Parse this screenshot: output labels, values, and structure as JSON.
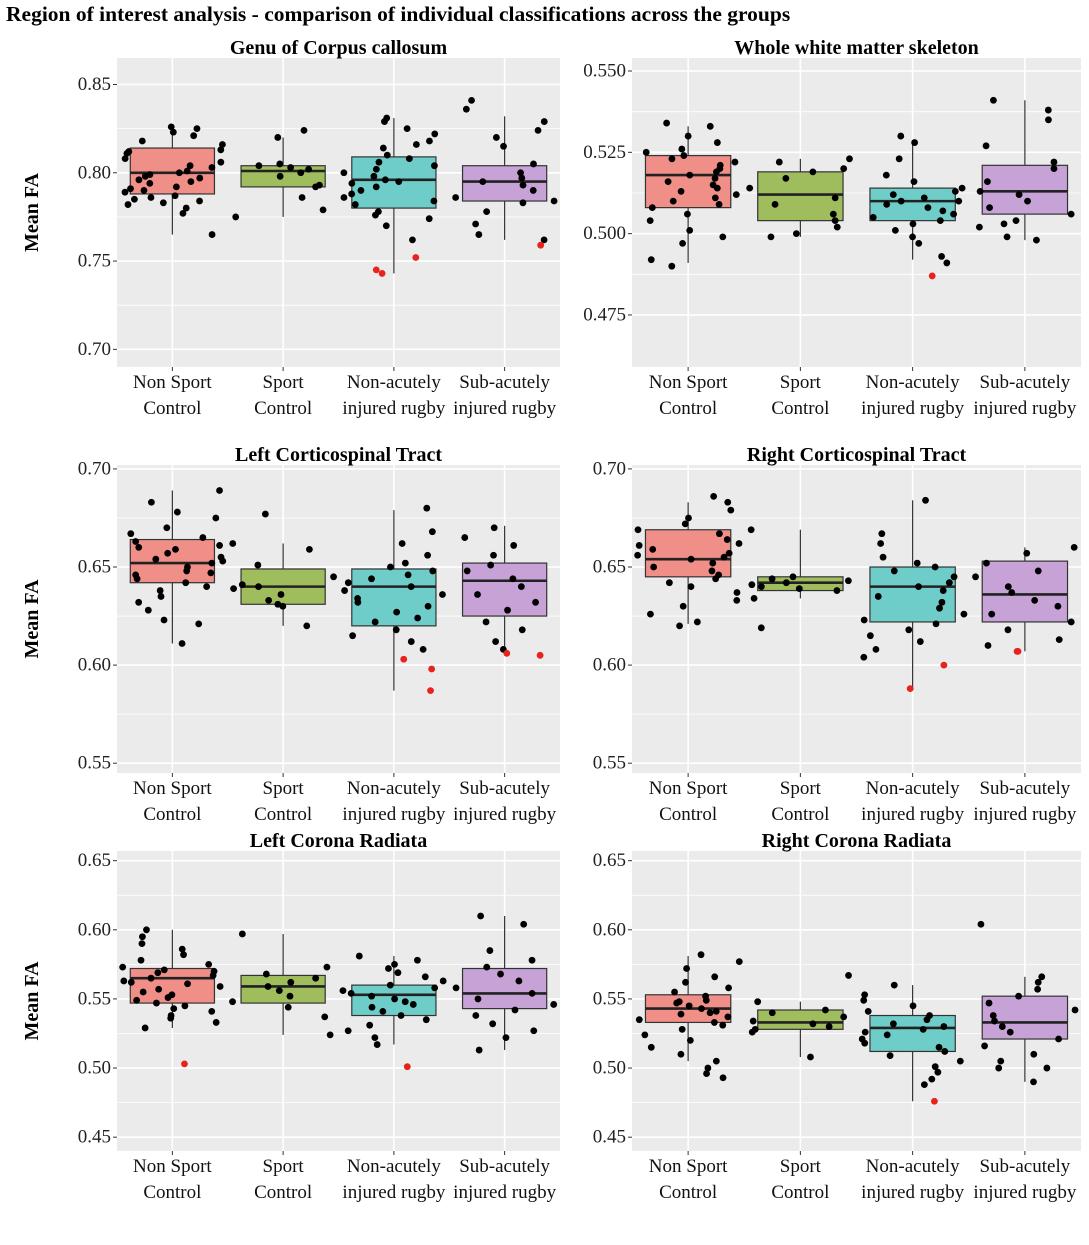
{
  "figure_title": "Region of interest analysis - comparison of individual classifications across the groups",
  "colors": {
    "panel_bg": "#ebebeb",
    "grid": "#ffffff",
    "Non Sport Control": "#f08f88",
    "Sport Control": "#9fbd5c",
    "Non-acutely injured rugby": "#6fcdc9",
    "Sub-acutely injured rugby": "#c7a2d7",
    "points": "#000000",
    "outliers": "#e8221c"
  },
  "chart_data": [
    {
      "type": "box",
      "title": "Genu of Corpus callosum",
      "ylabel": "Mean FA",
      "ylim": [
        0.69,
        0.865
      ],
      "yticks": [
        "0.70",
        "0.75",
        "0.80",
        "0.85"
      ],
      "grid": true,
      "categories": [
        [
          "Non Sport",
          "Control"
        ],
        [
          "Sport",
          "Control"
        ],
        [
          "Non-acutely",
          "injured rugby"
        ],
        [
          "Sub-acutely",
          "injured rugby"
        ]
      ],
      "boxes": [
        {
          "group": "Non Sport Control",
          "whisker_low": 0.765,
          "q1": 0.788,
          "median": 0.8,
          "q3": 0.814,
          "whisker_high": 0.827,
          "points": [
            0.823,
            0.821,
            0.825,
            0.818,
            0.816,
            0.813,
            0.811,
            0.808,
            0.806,
            0.804,
            0.803,
            0.801,
            0.8,
            0.799,
            0.798,
            0.797,
            0.795,
            0.794,
            0.792,
            0.791,
            0.79,
            0.789,
            0.787,
            0.786,
            0.785,
            0.784,
            0.783,
            0.782,
            0.78,
            0.777,
            0.765,
            0.812,
            0.796,
            0.826
          ],
          "outliers": []
        },
        {
          "group": "Sport Control",
          "whisker_low": 0.775,
          "q1": 0.792,
          "median": 0.801,
          "q3": 0.804,
          "whisker_high": 0.82,
          "points": [
            0.82,
            0.824,
            0.805,
            0.804,
            0.803,
            0.802,
            0.8,
            0.798,
            0.793,
            0.792,
            0.786,
            0.779,
            0.775
          ],
          "outliers": []
        },
        {
          "group": "Non-acutely injured rugby",
          "whisker_low": 0.743,
          "q1": 0.78,
          "median": 0.796,
          "q3": 0.809,
          "whisker_high": 0.831,
          "points": [
            0.831,
            0.829,
            0.825,
            0.822,
            0.818,
            0.814,
            0.81,
            0.806,
            0.804,
            0.802,
            0.8,
            0.798,
            0.796,
            0.795,
            0.794,
            0.792,
            0.79,
            0.788,
            0.786,
            0.784,
            0.782,
            0.778,
            0.776,
            0.774,
            0.77,
            0.762,
            0.816,
            0.808
          ],
          "outliers": [
            0.752,
            0.745,
            0.743
          ]
        },
        {
          "group": "Sub-acutely injured rugby",
          "whisker_low": 0.762,
          "q1": 0.784,
          "median": 0.795,
          "q3": 0.804,
          "whisker_high": 0.832,
          "points": [
            0.841,
            0.836,
            0.829,
            0.824,
            0.82,
            0.815,
            0.805,
            0.8,
            0.797,
            0.795,
            0.793,
            0.79,
            0.786,
            0.784,
            0.783,
            0.778,
            0.771,
            0.765,
            0.762
          ],
          "outliers": [
            0.759
          ]
        }
      ]
    },
    {
      "type": "box",
      "title": "Whole white matter skeleton",
      "ylabel": "",
      "ylim": [
        0.459,
        0.554
      ],
      "yticks": [
        "0.475",
        "0.500",
        "0.525",
        "0.550"
      ],
      "grid": true,
      "categories": [
        [
          "Non Sport",
          "Control"
        ],
        [
          "Sport",
          "Control"
        ],
        [
          "Non-acutely",
          "injured rugby"
        ],
        [
          "Sub-acutely",
          "injured rugby"
        ]
      ],
      "boxes": [
        {
          "group": "Non Sport Control",
          "whisker_low": 0.491,
          "q1": 0.508,
          "median": 0.518,
          "q3": 0.524,
          "whisker_high": 0.533,
          "points": [
            0.534,
            0.533,
            0.53,
            0.528,
            0.526,
            0.525,
            0.524,
            0.523,
            0.522,
            0.521,
            0.52,
            0.519,
            0.518,
            0.517,
            0.516,
            0.515,
            0.514,
            0.513,
            0.512,
            0.511,
            0.51,
            0.509,
            0.508,
            0.506,
            0.504,
            0.501,
            0.499,
            0.497,
            0.492,
            0.49
          ],
          "outliers": []
        },
        {
          "group": "Sport Control",
          "whisker_low": 0.499,
          "q1": 0.504,
          "median": 0.512,
          "q3": 0.519,
          "whisker_high": 0.523,
          "points": [
            0.523,
            0.522,
            0.52,
            0.519,
            0.517,
            0.514,
            0.511,
            0.509,
            0.506,
            0.504,
            0.502,
            0.5,
            0.499
          ],
          "outliers": []
        },
        {
          "group": "Non-acutely injured rugby",
          "whisker_low": 0.492,
          "q1": 0.504,
          "median": 0.51,
          "q3": 0.514,
          "whisker_high": 0.528,
          "points": [
            0.53,
            0.528,
            0.523,
            0.518,
            0.516,
            0.514,
            0.513,
            0.512,
            0.511,
            0.51,
            0.51,
            0.509,
            0.508,
            0.507,
            0.506,
            0.505,
            0.504,
            0.503,
            0.501,
            0.499,
            0.497,
            0.493,
            0.491
          ],
          "outliers": [
            0.487
          ]
        },
        {
          "group": "Sub-acutely injured rugby",
          "whisker_low": 0.498,
          "q1": 0.506,
          "median": 0.513,
          "q3": 0.521,
          "whisker_high": 0.541,
          "points": [
            0.538,
            0.541,
            0.535,
            0.527,
            0.522,
            0.52,
            0.516,
            0.513,
            0.512,
            0.51,
            0.508,
            0.506,
            0.504,
            0.503,
            0.502,
            0.499,
            0.498
          ],
          "outliers": []
        }
      ]
    },
    {
      "type": "box",
      "title": "Left Corticospinal Tract",
      "ylabel": "Mean FA",
      "ylim": [
        0.545,
        0.702
      ],
      "yticks": [
        "0.55",
        "0.60",
        "0.65",
        "0.70"
      ],
      "grid": true,
      "categories": [
        [
          "Non Sport",
          "Control"
        ],
        [
          "Sport",
          "Control"
        ],
        [
          "Non-acutely",
          "injured rugby"
        ],
        [
          "Sub-acutely",
          "injured rugby"
        ]
      ],
      "boxes": [
        {
          "group": "Non Sport Control",
          "whisker_low": 0.611,
          "q1": 0.642,
          "median": 0.652,
          "q3": 0.664,
          "whisker_high": 0.689,
          "points": [
            0.689,
            0.683,
            0.678,
            0.675,
            0.67,
            0.667,
            0.665,
            0.663,
            0.661,
            0.659,
            0.657,
            0.655,
            0.653,
            0.652,
            0.65,
            0.648,
            0.646,
            0.644,
            0.642,
            0.64,
            0.638,
            0.635,
            0.632,
            0.628,
            0.623,
            0.621,
            0.611,
            0.66,
            0.654,
            0.647
          ],
          "outliers": []
        },
        {
          "group": "Sport Control",
          "whisker_low": 0.62,
          "q1": 0.631,
          "median": 0.64,
          "q3": 0.649,
          "whisker_high": 0.662,
          "points": [
            0.677,
            0.662,
            0.659,
            0.651,
            0.645,
            0.641,
            0.64,
            0.639,
            0.636,
            0.633,
            0.631,
            0.63,
            0.62
          ],
          "outliers": []
        },
        {
          "group": "Non-acutely injured rugby",
          "whisker_low": 0.587,
          "q1": 0.62,
          "median": 0.64,
          "q3": 0.649,
          "whisker_high": 0.679,
          "points": [
            0.68,
            0.668,
            0.662,
            0.656,
            0.652,
            0.65,
            0.648,
            0.646,
            0.644,
            0.642,
            0.64,
            0.638,
            0.636,
            0.634,
            0.632,
            0.63,
            0.627,
            0.624,
            0.622,
            0.618,
            0.615,
            0.612,
            0.608
          ],
          "outliers": [
            0.603,
            0.598,
            0.587
          ]
        },
        {
          "group": "Sub-acutely injured rugby",
          "whisker_low": 0.605,
          "q1": 0.625,
          "median": 0.643,
          "q3": 0.652,
          "whisker_high": 0.671,
          "points": [
            0.67,
            0.665,
            0.661,
            0.656,
            0.651,
            0.648,
            0.644,
            0.64,
            0.636,
            0.632,
            0.628,
            0.622,
            0.618,
            0.612,
            0.608
          ],
          "outliers": [
            0.605,
            0.606
          ]
        }
      ]
    },
    {
      "type": "box",
      "title": "Right Corticospinal Tract",
      "ylabel": "",
      "ylim": [
        0.545,
        0.702
      ],
      "yticks": [
        "0.55",
        "0.60",
        "0.65",
        "0.70"
      ],
      "grid": true,
      "categories": [
        [
          "Non Sport",
          "Control"
        ],
        [
          "Sport",
          "Control"
        ],
        [
          "Non-acutely",
          "injured rugby"
        ],
        [
          "Sub-acutely",
          "injured rugby"
        ]
      ],
      "boxes": [
        {
          "group": "Non Sport Control",
          "whisker_low": 0.621,
          "q1": 0.645,
          "median": 0.654,
          "q3": 0.669,
          "whisker_high": 0.683,
          "points": [
            0.686,
            0.683,
            0.679,
            0.675,
            0.672,
            0.669,
            0.667,
            0.664,
            0.661,
            0.659,
            0.657,
            0.655,
            0.654,
            0.652,
            0.65,
            0.648,
            0.646,
            0.644,
            0.642,
            0.64,
            0.637,
            0.633,
            0.63,
            0.626,
            0.622,
            0.62,
            0.662,
            0.656
          ],
          "outliers": []
        },
        {
          "group": "Sport Control",
          "whisker_low": 0.634,
          "q1": 0.638,
          "median": 0.642,
          "q3": 0.645,
          "whisker_high": 0.669,
          "points": [
            0.669,
            0.645,
            0.644,
            0.643,
            0.642,
            0.641,
            0.64,
            0.639,
            0.638,
            0.634,
            0.619
          ],
          "outliers": []
        },
        {
          "group": "Non-acutely injured rugby",
          "whisker_low": 0.588,
          "q1": 0.622,
          "median": 0.64,
          "q3": 0.65,
          "whisker_high": 0.684,
          "points": [
            0.684,
            0.667,
            0.662,
            0.655,
            0.652,
            0.65,
            0.648,
            0.645,
            0.642,
            0.64,
            0.638,
            0.635,
            0.632,
            0.629,
            0.626,
            0.623,
            0.621,
            0.618,
            0.615,
            0.612,
            0.608,
            0.604
          ],
          "outliers": [
            0.6,
            0.588
          ]
        },
        {
          "group": "Sub-acutely injured rugby",
          "whisker_low": 0.607,
          "q1": 0.622,
          "median": 0.636,
          "q3": 0.653,
          "whisker_high": 0.66,
          "points": [
            0.66,
            0.657,
            0.652,
            0.648,
            0.645,
            0.64,
            0.637,
            0.633,
            0.63,
            0.626,
            0.622,
            0.618,
            0.613,
            0.61
          ],
          "outliers": [
            0.607,
            0.607
          ]
        }
      ]
    },
    {
      "type": "box",
      "title": "Left Corona Radiata",
      "ylabel": "Mean FA",
      "ylim": [
        0.44,
        0.657
      ],
      "yticks": [
        "0.45",
        "0.50",
        "0.55",
        "0.60",
        "0.65"
      ],
      "grid": true,
      "categories": [
        [
          "Non Sport",
          "Control"
        ],
        [
          "Sport",
          "Control"
        ],
        [
          "Non-acutely",
          "injured rugby"
        ],
        [
          "Sub-acutely",
          "injured rugby"
        ]
      ],
      "boxes": [
        {
          "group": "Non Sport Control",
          "whisker_low": 0.529,
          "q1": 0.547,
          "median": 0.565,
          "q3": 0.572,
          "whisker_high": 0.6,
          "points": [
            0.6,
            0.595,
            0.59,
            0.586,
            0.582,
            0.578,
            0.575,
            0.573,
            0.571,
            0.569,
            0.567,
            0.565,
            0.563,
            0.561,
            0.559,
            0.557,
            0.555,
            0.553,
            0.551,
            0.549,
            0.547,
            0.545,
            0.543,
            0.541,
            0.538,
            0.536,
            0.533,
            0.529,
            0.57,
            0.562
          ],
          "outliers": [
            0.503
          ]
        },
        {
          "group": "Sport Control",
          "whisker_low": 0.524,
          "q1": 0.547,
          "median": 0.559,
          "q3": 0.567,
          "whisker_high": 0.597,
          "points": [
            0.597,
            0.573,
            0.568,
            0.565,
            0.562,
            0.559,
            0.556,
            0.552,
            0.548,
            0.544,
            0.537,
            0.524
          ],
          "outliers": []
        },
        {
          "group": "Non-acutely injured rugby",
          "whisker_low": 0.517,
          "q1": 0.538,
          "median": 0.553,
          "q3": 0.56,
          "whisker_high": 0.581,
          "points": [
            0.581,
            0.578,
            0.575,
            0.572,
            0.569,
            0.566,
            0.563,
            0.56,
            0.558,
            0.556,
            0.554,
            0.552,
            0.55,
            0.548,
            0.546,
            0.544,
            0.541,
            0.538,
            0.535,
            0.531,
            0.527,
            0.522,
            0.517
          ],
          "outliers": [
            0.501
          ]
        },
        {
          "group": "Sub-acutely injured rugby",
          "whisker_low": 0.513,
          "q1": 0.543,
          "median": 0.554,
          "q3": 0.572,
          "whisker_high": 0.61,
          "points": [
            0.61,
            0.604,
            0.585,
            0.578,
            0.573,
            0.568,
            0.563,
            0.558,
            0.554,
            0.55,
            0.546,
            0.542,
            0.538,
            0.532,
            0.527,
            0.522,
            0.513
          ],
          "outliers": []
        }
      ]
    },
    {
      "type": "box",
      "title": "Right Corona Radiata",
      "ylabel": "",
      "ylim": [
        0.44,
        0.657
      ],
      "yticks": [
        "0.45",
        "0.50",
        "0.55",
        "0.60",
        "0.65"
      ],
      "grid": true,
      "categories": [
        [
          "Non Sport",
          "Control"
        ],
        [
          "Sport",
          "Control"
        ],
        [
          "Non-acutely",
          "injured rugby"
        ],
        [
          "Sub-acutely",
          "injured rugby"
        ]
      ],
      "boxes": [
        {
          "group": "Non Sport Control",
          "whisker_low": 0.505,
          "q1": 0.533,
          "median": 0.543,
          "q3": 0.553,
          "whisker_high": 0.581,
          "points": [
            0.582,
            0.577,
            0.572,
            0.566,
            0.562,
            0.558,
            0.555,
            0.552,
            0.549,
            0.547,
            0.545,
            0.543,
            0.541,
            0.539,
            0.537,
            0.535,
            0.533,
            0.531,
            0.528,
            0.524,
            0.52,
            0.515,
            0.51,
            0.505,
            0.5,
            0.496,
            0.493,
            0.548,
            0.54
          ],
          "outliers": []
        },
        {
          "group": "Sport Control",
          "whisker_low": 0.508,
          "q1": 0.528,
          "median": 0.533,
          "q3": 0.542,
          "whisker_high": 0.548,
          "points": [
            0.567,
            0.548,
            0.542,
            0.54,
            0.537,
            0.534,
            0.532,
            0.53,
            0.528,
            0.526,
            0.508
          ],
          "outliers": []
        },
        {
          "group": "Non-acutely injured rugby",
          "whisker_low": 0.476,
          "q1": 0.512,
          "median": 0.529,
          "q3": 0.538,
          "whisker_high": 0.56,
          "points": [
            0.56,
            0.553,
            0.549,
            0.545,
            0.541,
            0.538,
            0.535,
            0.532,
            0.53,
            0.528,
            0.526,
            0.524,
            0.521,
            0.518,
            0.515,
            0.512,
            0.509,
            0.505,
            0.501,
            0.497,
            0.492,
            0.488
          ],
          "outliers": [
            0.476
          ]
        },
        {
          "group": "Sub-acutely injured rugby",
          "whisker_low": 0.49,
          "q1": 0.521,
          "median": 0.533,
          "q3": 0.552,
          "whisker_high": 0.566,
          "points": [
            0.604,
            0.566,
            0.562,
            0.557,
            0.552,
            0.547,
            0.542,
            0.538,
            0.534,
            0.53,
            0.526,
            0.521,
            0.516,
            0.51,
            0.505,
            0.5,
            0.5,
            0.49
          ],
          "outliers": []
        }
      ]
    }
  ]
}
